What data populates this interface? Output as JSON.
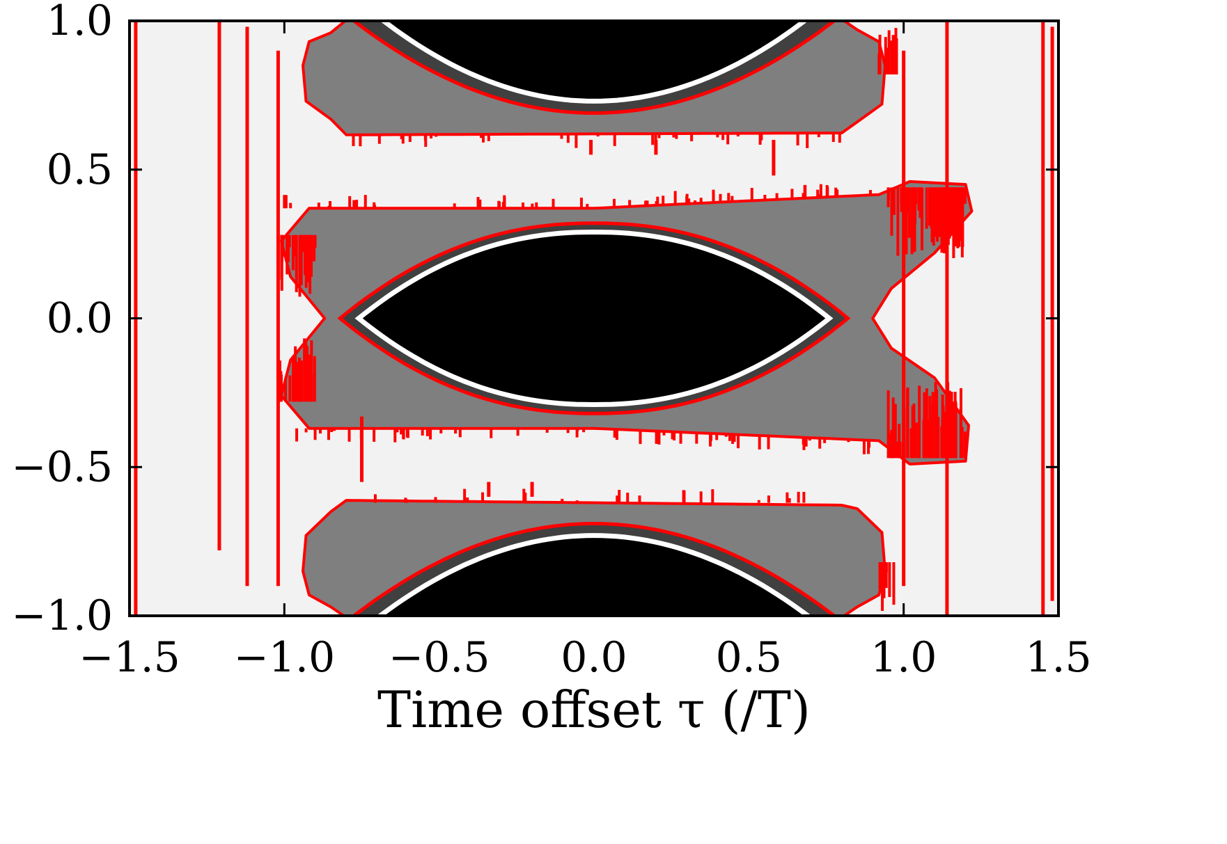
{
  "chart_data": {
    "type": "heatmap",
    "xlabel": "Time offset τ (/T)",
    "ylabel": "",
    "xlim": [
      -1.5,
      1.5
    ],
    "ylim": [
      -1.0,
      1.0
    ],
    "xticks": [
      {
        "value": -1.5,
        "label": "−1.5"
      },
      {
        "value": -1.0,
        "label": "−1.0"
      },
      {
        "value": -0.5,
        "label": "−0.5"
      },
      {
        "value": 0.0,
        "label": "0.0"
      },
      {
        "value": 0.5,
        "label": "0.5"
      },
      {
        "value": 1.0,
        "label": "1.0"
      },
      {
        "value": 1.5,
        "label": "1.5"
      }
    ],
    "yticks": [
      {
        "value": -1.0,
        "label": "−1.0"
      },
      {
        "value": -0.5,
        "label": "−0.5"
      },
      {
        "value": 0.0,
        "label": "0.0"
      },
      {
        "value": 0.5,
        "label": "0.5"
      },
      {
        "value": 1.0,
        "label": "1.0"
      }
    ],
    "grid": false,
    "colors": {
      "background": "#f2f2f2",
      "region_gray": "#7f7f7f",
      "region_dark": "#404040",
      "eye_black": "#000000",
      "boundary_red": "#ff0000",
      "boundary_white": "#ffffff"
    },
    "regions": {
      "center_eye": {
        "x_half_width": 0.76,
        "y_half_height": 0.29
      },
      "center_gray_band": {
        "x_range": [
          -1.0,
          1.22
        ],
        "y_range": [
          -0.4,
          0.4
        ]
      },
      "upper_eye_bottom": 0.73,
      "lower_eye_top": -0.73,
      "upper_band": {
        "x_range": [
          -0.92,
          0.92
        ],
        "y_range": [
          0.63,
          1.0
        ]
      },
      "lower_band": {
        "x_range": [
          -0.92,
          0.92
        ],
        "y_range": [
          -1.0,
          -0.62
        ]
      }
    },
    "vertical_red_lines_x": [
      -1.48,
      -1.21,
      -1.12,
      -1.02,
      -0.75,
      -0.34,
      -0.2,
      -0.01,
      0.2,
      0.58,
      1.0,
      1.14,
      1.45,
      1.48
    ]
  }
}
